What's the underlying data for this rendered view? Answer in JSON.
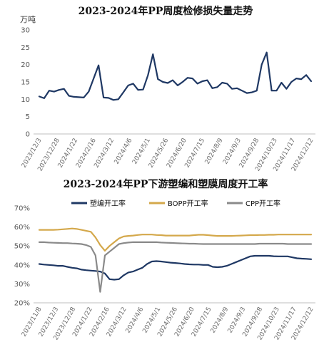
{
  "chart_data": [
    {
      "type": "line",
      "title": "2023-2024年PP周度检修损失量走势",
      "ylabel": "万吨",
      "ylim": [
        0,
        30
      ],
      "yticks": [
        "0",
        "5",
        "10",
        "15",
        "20",
        "25",
        "30"
      ],
      "grid": false,
      "xticklabels": [
        "2023/12/3",
        "2023/12/28",
        "2024/1/22",
        "2024/2/16",
        "2024/3/12",
        "2024/4/6",
        "2024/5/1",
        "2024/5/26",
        "2024/6/20",
        "2024/7/15",
        "2024/8/9",
        "2024/9/3",
        "2024/9/28",
        "2024/10/23",
        "2024/11/17",
        "2024/12/12"
      ],
      "series": [
        {
          "color": "#1f3864",
          "values": [
            10.8,
            10.3,
            12.5,
            12.2,
            12.7,
            13.0,
            11.0,
            10.7,
            10.6,
            10.5,
            12.2,
            16.0,
            19.8,
            10.5,
            10.4,
            9.8,
            10.0,
            12.0,
            14.0,
            14.5,
            12.7,
            12.8,
            17.0,
            23.0,
            15.8,
            15.0,
            14.7,
            15.5,
            14.0,
            15.0,
            16.2,
            16.0,
            14.5,
            15.2,
            15.5,
            13.2,
            13.5,
            14.8,
            14.5,
            13.0,
            13.2,
            12.5,
            11.8,
            12.0,
            12.5,
            20.0,
            23.5,
            12.5,
            12.5,
            14.8,
            13.0,
            15.0,
            16.0,
            15.8,
            17.0,
            15.2
          ]
        }
      ]
    },
    {
      "type": "line",
      "title": "2023-2024年PP下游塑编和塑膜周度开工率",
      "ylim": [
        20,
        70
      ],
      "yticks": [
        "20%",
        "30%",
        "40%",
        "50%",
        "60%",
        "70%"
      ],
      "grid": false,
      "legend_position": "top",
      "xticklabels": [
        "2023/11/8",
        "2023/12/3",
        "2023/12/28",
        "2024/1/22",
        "2024/2/16",
        "2024/3/12",
        "2024/4/6",
        "2024/5/1",
        "2024/5/26",
        "2024/6/20",
        "2024/7/15",
        "2024/8/9",
        "2024/9/3",
        "2024/9/28",
        "2024/10/23",
        "2024/11/17",
        "2024/12/12"
      ],
      "series": [
        {
          "name": "塑编开工率",
          "color": "#1f3864",
          "values": [
            40.5,
            40.2,
            40.0,
            39.8,
            39.5,
            39.5,
            39.0,
            38.5,
            38.2,
            37.5,
            37.2,
            37.0,
            36.8,
            36.5,
            35.5,
            32.5,
            32.2,
            32.5,
            34.5,
            36.0,
            36.5,
            37.5,
            38.5,
            40.5,
            41.8,
            42.0,
            41.8,
            41.5,
            41.2,
            41.0,
            40.8,
            40.5,
            40.3,
            40.2,
            40.2,
            40.0,
            40.0,
            39.0,
            38.8,
            39.0,
            39.5,
            40.5,
            41.5,
            42.5,
            43.5,
            44.5,
            44.8,
            44.8,
            44.8,
            44.8,
            44.6,
            44.5,
            44.5,
            44.5,
            44.0,
            43.5,
            43.3,
            43.2,
            43.0
          ]
        },
        {
          "name": "BOPP开工率",
          "color": "#d4a84b",
          "values": [
            58.5,
            58.5,
            58.5,
            58.5,
            58.6,
            58.8,
            59.0,
            59.2,
            59.0,
            58.5,
            58.0,
            57.5,
            54.5,
            50.5,
            47.5,
            50.0,
            52.0,
            54.0,
            55.0,
            55.3,
            55.5,
            55.8,
            56.0,
            56.0,
            56.0,
            55.8,
            55.7,
            55.5,
            55.5,
            55.5,
            55.5,
            55.5,
            55.5,
            55.7,
            55.9,
            55.9,
            55.7,
            55.5,
            55.3,
            55.3,
            55.3,
            55.3,
            55.4,
            55.5,
            55.6,
            55.7,
            55.7,
            55.8,
            55.8,
            55.9,
            55.9,
            56.0,
            56.0,
            56.0,
            56.0,
            56.0,
            56.0,
            56.0,
            56.0
          ]
        },
        {
          "name": "CPP开工率",
          "color": "#8a8a8a",
          "values": [
            52.0,
            52.0,
            51.8,
            51.7,
            51.6,
            51.5,
            51.5,
            51.3,
            51.2,
            51.0,
            50.5,
            49.5,
            45.0,
            25.8,
            45.0,
            47.0,
            49.0,
            51.0,
            51.5,
            51.8,
            52.0,
            52.0,
            52.0,
            52.0,
            52.0,
            52.0,
            51.8,
            51.7,
            51.6,
            51.5,
            51.4,
            51.3,
            51.2,
            51.2,
            51.1,
            51.0,
            51.0,
            51.0,
            51.0,
            51.0,
            51.0,
            51.0,
            51.0,
            51.0,
            51.0,
            51.0,
            51.0,
            51.2,
            51.2,
            51.2,
            51.2,
            51.2,
            51.2,
            51.0,
            51.0,
            51.0,
            51.0,
            51.0,
            51.0
          ]
        }
      ]
    }
  ]
}
